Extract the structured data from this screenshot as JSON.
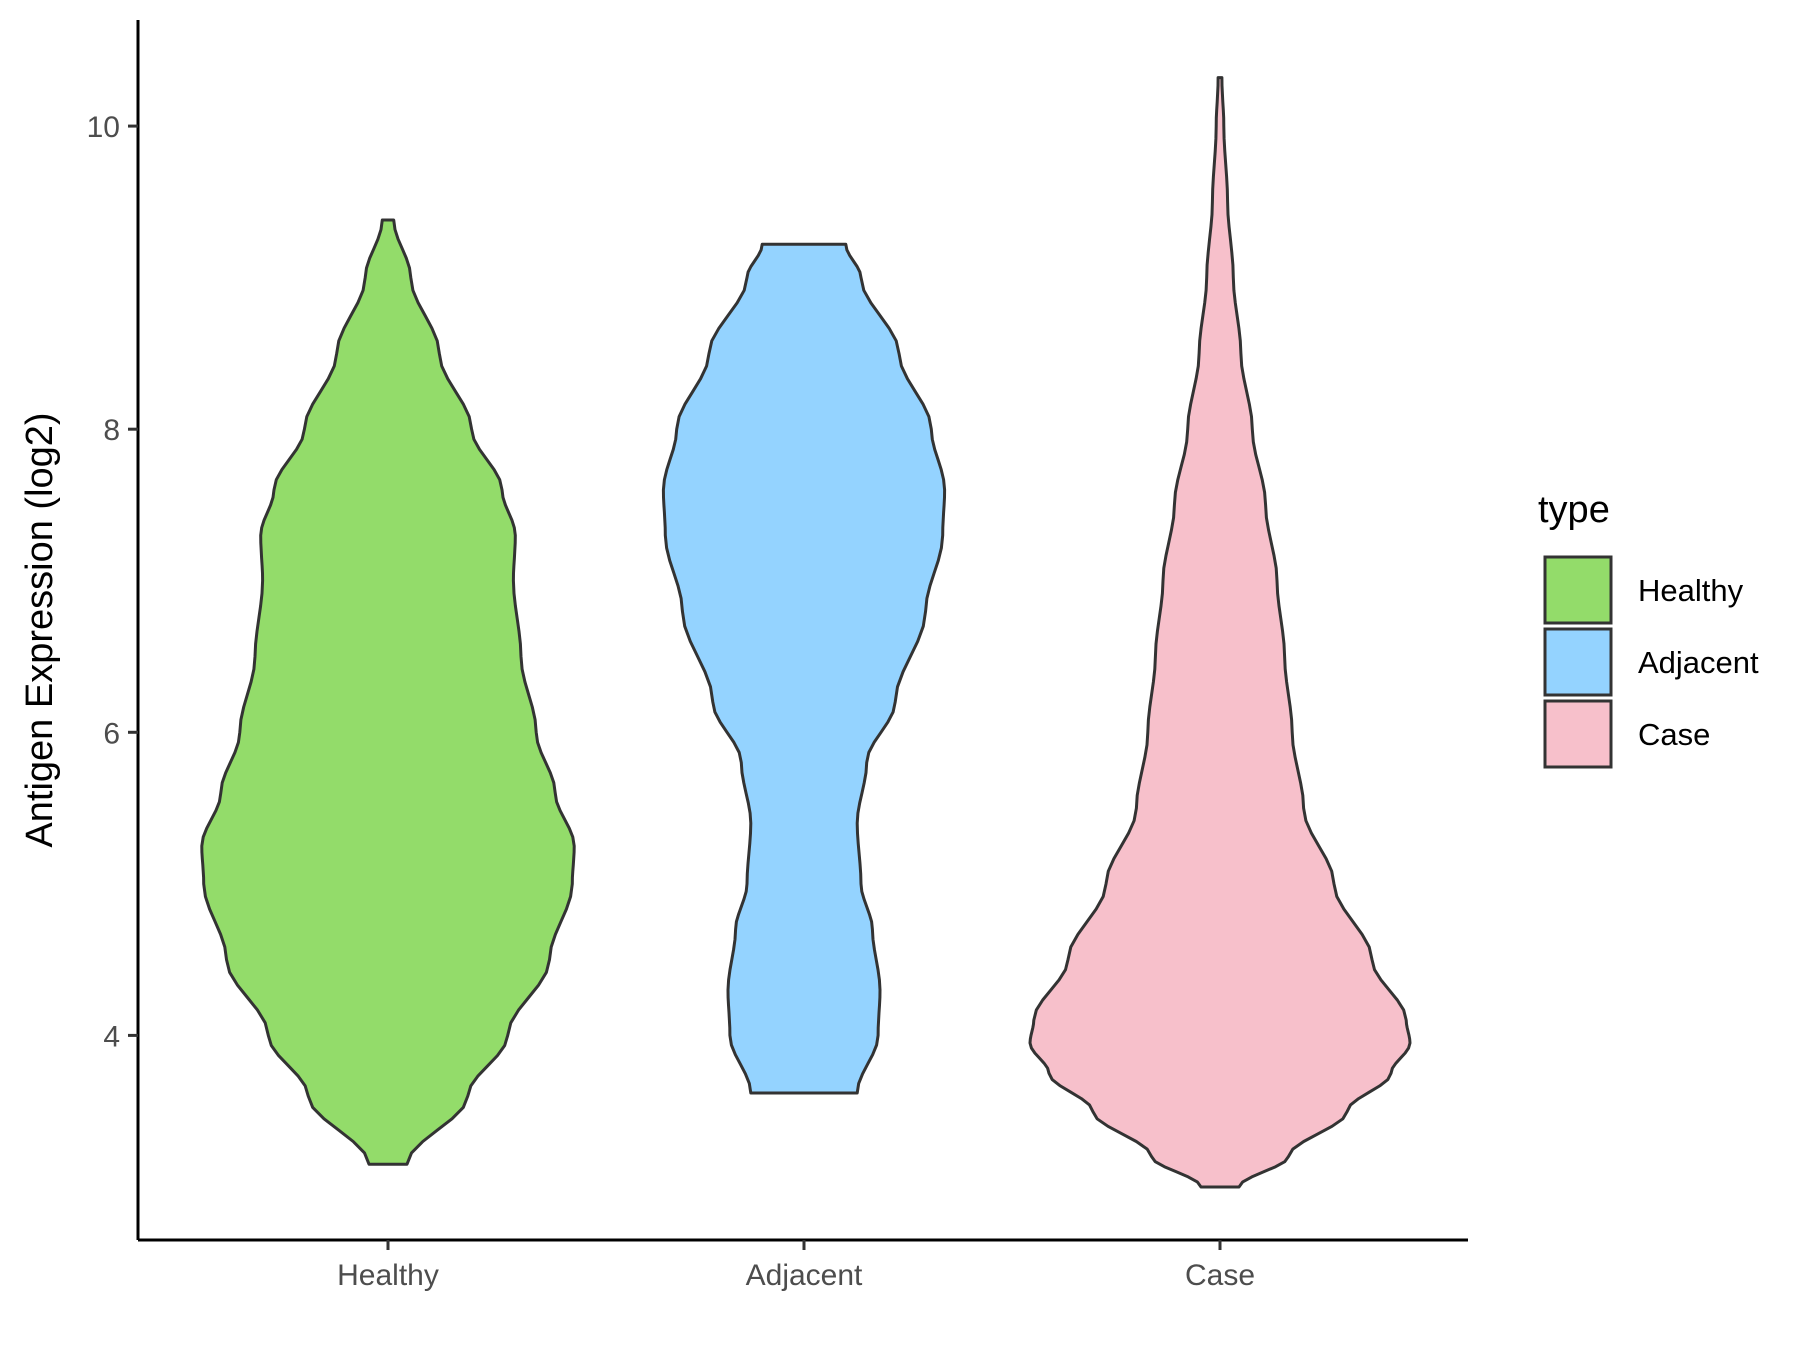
{
  "chart_data": {
    "type": "violin",
    "ylabel": "Antigen Expression (log2)",
    "xlabel": "",
    "ylim": [
      2.65,
      10.7
    ],
    "yticks": [
      4,
      6,
      8,
      10
    ],
    "categories": [
      "Healthy",
      "Adjacent",
      "Case"
    ],
    "legend": {
      "title": "type",
      "position": "right",
      "entries": [
        "Healthy",
        "Adjacent",
        "Case"
      ]
    },
    "grid": false,
    "series": [
      {
        "name": "Healthy",
        "color": "#93dc6a",
        "min": 3.15,
        "max": 9.38,
        "density": [
          [
            3.15,
            0.1
          ],
          [
            3.6,
            0.42
          ],
          [
            4.0,
            0.63
          ],
          [
            4.5,
            0.85
          ],
          [
            5.0,
            0.97
          ],
          [
            5.25,
            0.98
          ],
          [
            5.6,
            0.88
          ],
          [
            6.0,
            0.78
          ],
          [
            6.5,
            0.7
          ],
          [
            7.0,
            0.66
          ],
          [
            7.3,
            0.67
          ],
          [
            7.6,
            0.6
          ],
          [
            8.0,
            0.44
          ],
          [
            8.5,
            0.27
          ],
          [
            9.0,
            0.12
          ],
          [
            9.38,
            0.03
          ]
        ]
      },
      {
        "name": "Adjacent",
        "color": "#94d3ff",
        "min": 3.62,
        "max": 9.22,
        "density": [
          [
            3.62,
            0.28
          ],
          [
            4.0,
            0.39
          ],
          [
            4.3,
            0.4
          ],
          [
            4.7,
            0.36
          ],
          [
            5.0,
            0.3
          ],
          [
            5.4,
            0.28
          ],
          [
            5.8,
            0.33
          ],
          [
            6.2,
            0.48
          ],
          [
            6.8,
            0.64
          ],
          [
            7.3,
            0.73
          ],
          [
            7.6,
            0.74
          ],
          [
            8.0,
            0.67
          ],
          [
            8.5,
            0.5
          ],
          [
            9.0,
            0.3
          ],
          [
            9.22,
            0.22
          ]
        ]
      },
      {
        "name": "Case",
        "color": "#f7c0cb",
        "min": 3.0,
        "max": 10.32,
        "density": [
          [
            3.0,
            0.1
          ],
          [
            3.2,
            0.36
          ],
          [
            3.5,
            0.67
          ],
          [
            3.75,
            0.9
          ],
          [
            3.95,
            1.0
          ],
          [
            4.1,
            0.98
          ],
          [
            4.5,
            0.8
          ],
          [
            5.0,
            0.6
          ],
          [
            5.5,
            0.44
          ],
          [
            6.0,
            0.38
          ],
          [
            6.5,
            0.34
          ],
          [
            7.0,
            0.3
          ],
          [
            7.5,
            0.24
          ],
          [
            8.0,
            0.17
          ],
          [
            8.5,
            0.11
          ],
          [
            9.0,
            0.07
          ],
          [
            9.5,
            0.04
          ],
          [
            10.0,
            0.02
          ],
          [
            10.32,
            0.01
          ]
        ]
      }
    ]
  }
}
